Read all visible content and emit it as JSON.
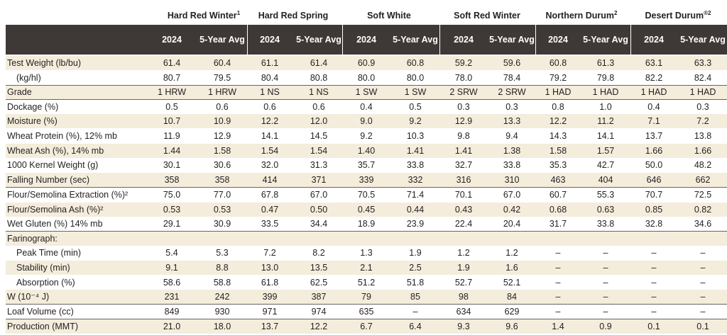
{
  "groups": [
    {
      "name": "Hard Red Winter",
      "mark": "1"
    },
    {
      "name": "Hard Red Spring",
      "mark": ""
    },
    {
      "name": "Soft White",
      "mark": ""
    },
    {
      "name": "Soft Red Winter",
      "mark": ""
    },
    {
      "name": "Northern Durum",
      "mark": "2"
    },
    {
      "name": "Desert Durum",
      "mark": "®2"
    }
  ],
  "year_headers": [
    "2024",
    "5-Year Avg"
  ],
  "rows": [
    {
      "label": "Test Weight (lb/bu)",
      "values": [
        "61.4",
        "60.4",
        "61.1",
        "61.4",
        "60.9",
        "60.8",
        "59.2",
        "59.6",
        "60.8",
        "61.3",
        "63.1",
        "63.3"
      ]
    },
    {
      "label": "(kg/hl)",
      "values": [
        "80.7",
        "79.5",
        "80.4",
        "80.8",
        "80.0",
        "80.0",
        "78.0",
        "78.4",
        "79.2",
        "79.8",
        "82.2",
        "82.4"
      ]
    },
    {
      "label": "Grade",
      "values": [
        "1 HRW",
        "1 HRW",
        "1 NS",
        "1 NS",
        "1 SW",
        "1 SW",
        "2 SRW",
        "2 SRW",
        "1 HAD",
        "1 HAD",
        "1 HAD",
        "1 HAD"
      ]
    },
    {
      "label": "Dockage (%)",
      "values": [
        "0.5",
        "0.6",
        "0.6",
        "0.6",
        "0.4",
        "0.5",
        "0.3",
        "0.3",
        "0.8",
        "1.0",
        "0.4",
        "0.3"
      ]
    },
    {
      "label": "Moisture (%)",
      "values": [
        "10.7",
        "10.9",
        "12.2",
        "12.0",
        "9.0",
        "9.2",
        "12.9",
        "13.3",
        "12.2",
        "11.2",
        "7.1",
        "7.2"
      ]
    },
    {
      "label": "Wheat Protein (%), 12% mb",
      "values": [
        "11.9",
        "12.9",
        "14.1",
        "14.5",
        "9.2",
        "10.3",
        "9.8",
        "9.4",
        "14.3",
        "14.1",
        "13.7",
        "13.8"
      ]
    },
    {
      "label": "Wheat Ash (%), 14% mb",
      "values": [
        "1.44",
        "1.58",
        "1.54",
        "1.54",
        "1.40",
        "1.41",
        "1.41",
        "1.38",
        "1.58",
        "1.57",
        "1.66",
        "1.66"
      ]
    },
    {
      "label": "1000 Kernel Weight (g)",
      "values": [
        "30.1",
        "30.6",
        "32.0",
        "31.3",
        "35.7",
        "33.8",
        "32.7",
        "33.8",
        "35.3",
        "42.7",
        "50.0",
        "48.2"
      ]
    },
    {
      "label": "Falling Number (sec)",
      "values": [
        "358",
        "358",
        "414",
        "371",
        "339",
        "332",
        "316",
        "310",
        "463",
        "404",
        "646",
        "662"
      ]
    },
    {
      "label": "Flour/Semolina Extraction (%)²",
      "values": [
        "75.0",
        "77.0",
        "67.8",
        "67.0",
        "70.5",
        "71.4",
        "70.1",
        "67.0",
        "60.7",
        "55.3",
        "70.7",
        "72.5"
      ]
    },
    {
      "label": "Flour/Semolina Ash (%)²",
      "values": [
        "0.53",
        "0.53",
        "0.47",
        "0.50",
        "0.45",
        "0.44",
        "0.43",
        "0.42",
        "0.68",
        "0.63",
        "0.85",
        "0.82"
      ]
    },
    {
      "label": "Wet Gluten (%) 14% mb",
      "values": [
        "29.1",
        "30.9",
        "33.5",
        "34.4",
        "18.9",
        "23.9",
        "22.4",
        "20.4",
        "31.7",
        "33.8",
        "32.8",
        "34.6"
      ]
    },
    {
      "label": "Farinograph:",
      "values": [
        "",
        "",
        "",
        "",
        "",
        "",
        "",
        "",
        "",
        "",
        "",
        ""
      ]
    },
    {
      "label": "Peak Time (min)",
      "values": [
        "5.4",
        "5.3",
        "7.2",
        "8.2",
        "1.3",
        "1.9",
        "1.2",
        "1.2",
        "–",
        "–",
        "–",
        "–"
      ]
    },
    {
      "label": "Stability (min)",
      "values": [
        "9.1",
        "8.8",
        "13.0",
        "13.5",
        "2.1",
        "2.5",
        "1.9",
        "1.6",
        "–",
        "–",
        "–",
        "–"
      ]
    },
    {
      "label": "Absorption (%)",
      "values": [
        "58.6",
        "58.8",
        "61.8",
        "62.5",
        "51.2",
        "51.8",
        "52.7",
        "52.1",
        "–",
        "–",
        "–",
        "–"
      ]
    },
    {
      "label": "W (10⁻⁴ J)",
      "values": [
        "231",
        "242",
        "399",
        "387",
        "79",
        "85",
        "98",
        "84",
        "–",
        "–",
        "–",
        "–"
      ]
    },
    {
      "label": "Loaf Volume (cc)",
      "values": [
        "849",
        "930",
        "971",
        "974",
        "635",
        "–",
        "634",
        "629",
        "–",
        "–",
        "–",
        "–"
      ]
    },
    {
      "label": "Production (MMT)",
      "values": [
        "21.0",
        "18.0",
        "13.7",
        "12.2",
        "6.7",
        "6.4",
        "9.3",
        "9.6",
        "1.4",
        "0.9",
        "0.1",
        "0.1"
      ]
    }
  ]
}
